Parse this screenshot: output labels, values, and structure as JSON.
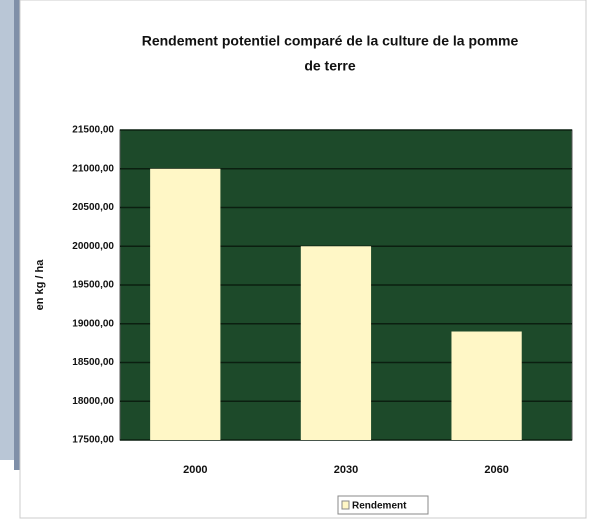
{
  "chart_data": {
    "type": "bar",
    "title": "Rendement potentiel comparé de la culture de la pomme de terre",
    "y_label": "en kg / ha",
    "categories": [
      "2000",
      "2030",
      "2060"
    ],
    "series": [
      {
        "name": "Rendement",
        "color": "#fff7c6",
        "values": [
          21000,
          20000,
          18900
        ]
      }
    ],
    "ylim": [
      17500,
      21500
    ],
    "yticks": [
      {
        "value": 17500,
        "label": "17500,00"
      },
      {
        "value": 18000,
        "label": "18000,00"
      },
      {
        "value": 18500,
        "label": "18500,00"
      },
      {
        "value": 19000,
        "label": "19000,00"
      },
      {
        "value": 19500,
        "label": "19500,00"
      },
      {
        "value": 20000,
        "label": "20000,00"
      },
      {
        "value": 20500,
        "label": "20500,00"
      },
      {
        "value": 21000,
        "label": "21000,00"
      },
      {
        "value": 21500,
        "label": "21500,00"
      }
    ],
    "grid": true,
    "plot_background": "#1d4a2a",
    "legend": "bottom"
  }
}
